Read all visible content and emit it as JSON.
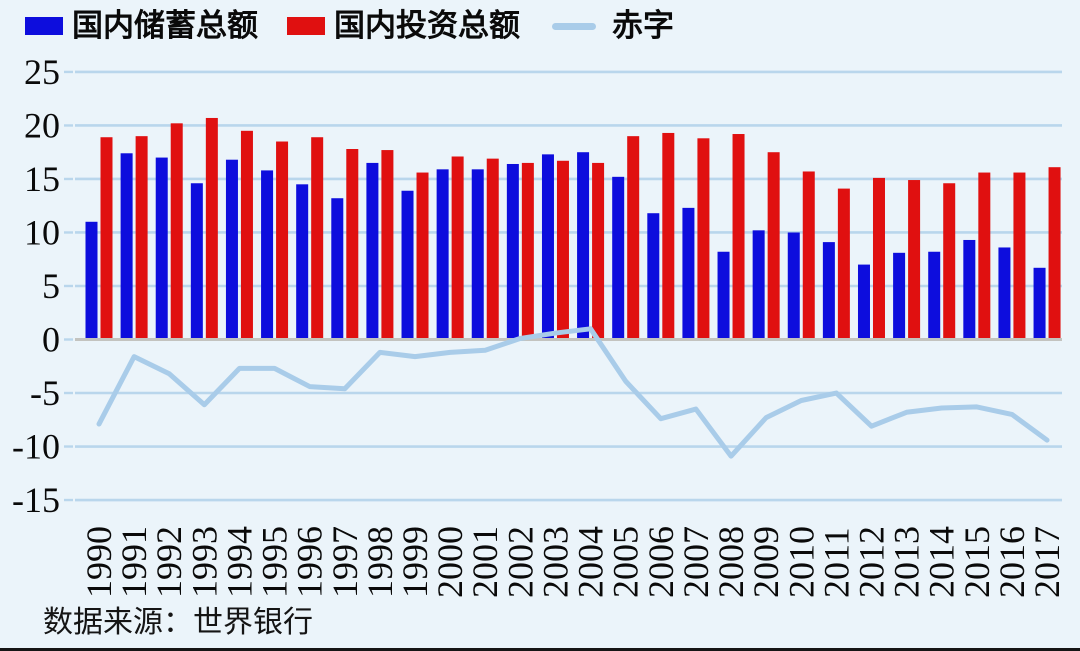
{
  "legend": {
    "items": [
      {
        "label": "国内储蓄总额",
        "type": "bar",
        "color": "#0d0ddd"
      },
      {
        "label": "国内投资总额",
        "type": "bar",
        "color": "#e01010"
      },
      {
        "label": "赤字",
        "type": "line",
        "color": "#a9cce9"
      }
    ]
  },
  "source_note": "数据来源：世界银行",
  "colors": {
    "background": "#ebf4fa",
    "gridline": "#b9d6ec",
    "zero_line": "#c3c3bf",
    "savings_bar": "#0d0ddd",
    "investment_bar": "#e01010",
    "deficit_line": "#a9cce9",
    "axis_text": "#0a0a0a"
  },
  "chart_data": {
    "type": "bar",
    "title": "",
    "xlabel": "",
    "ylabel": "",
    "categories": [
      "1990",
      "1991",
      "1992",
      "1993",
      "1994",
      "1995",
      "1996",
      "1997",
      "1998",
      "1999",
      "2000",
      "2001",
      "2002",
      "2003",
      "2004",
      "2005",
      "2006",
      "2007",
      "2008",
      "2009",
      "2010",
      "2011",
      "2012",
      "2013",
      "2014",
      "2015",
      "2016",
      "2017"
    ],
    "series": [
      {
        "name": "国内储蓄总额",
        "type": "bar",
        "color": "#0d0ddd",
        "values": [
          11.0,
          17.4,
          17.0,
          14.6,
          16.8,
          15.8,
          14.5,
          13.2,
          16.5,
          13.9,
          15.9,
          15.9,
          16.4,
          17.3,
          17.5,
          15.2,
          11.8,
          12.3,
          8.2,
          10.2,
          10.0,
          9.1,
          7.0,
          8.1,
          8.2,
          9.3,
          8.6,
          6.7
        ]
      },
      {
        "name": "国内投资总额",
        "type": "bar",
        "color": "#e01010",
        "values": [
          18.9,
          19.0,
          20.2,
          20.7,
          19.5,
          18.5,
          18.9,
          17.8,
          17.7,
          15.6,
          17.1,
          16.9,
          16.5,
          16.7,
          16.5,
          19.0,
          19.3,
          18.8,
          19.2,
          17.5,
          15.7,
          14.1,
          15.1,
          14.9,
          14.6,
          15.6,
          15.6,
          16.1
        ]
      },
      {
        "name": "赤字",
        "type": "line",
        "color": "#a9cce9",
        "values": [
          -7.9,
          -1.6,
          -3.2,
          -6.1,
          -2.7,
          -2.7,
          -4.4,
          -4.6,
          -1.2,
          -1.6,
          -1.2,
          -1.0,
          0.1,
          0.6,
          1.0,
          -3.9,
          -7.4,
          -6.5,
          -10.9,
          -7.3,
          -5.7,
          -5.0,
          -8.1,
          -6.8,
          -6.4,
          -6.3,
          -7.0,
          -9.4
        ]
      }
    ],
    "ylim": [
      -15,
      25
    ],
    "y_ticks": [
      25,
      20,
      15,
      10,
      5,
      0,
      -5,
      -10,
      -15
    ],
    "grid": "horizontal",
    "legend_position": "top-left"
  }
}
